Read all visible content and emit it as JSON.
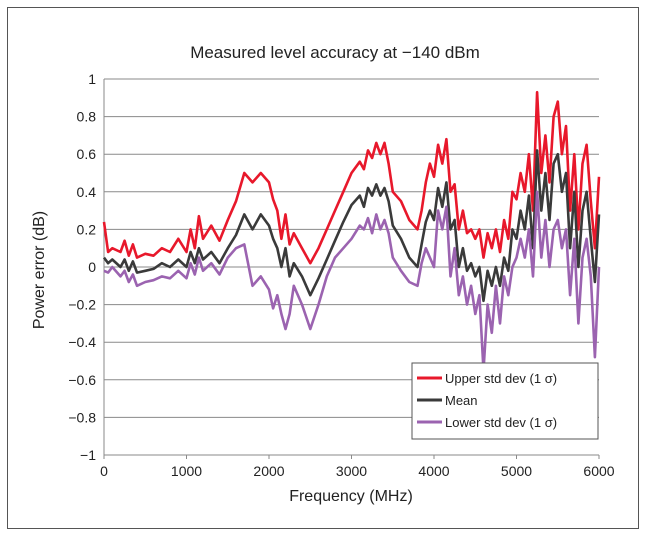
{
  "chart_data": {
    "type": "line",
    "title": "Measured level accuracy at −140 dBm",
    "xlabel": "Frequency (MHz)",
    "ylabel": "Power error (dB)",
    "xlim": [
      0,
      6000
    ],
    "ylim": [
      -1,
      1
    ],
    "x_ticks": [
      0,
      1000,
      2000,
      3000,
      4000,
      5000,
      6000
    ],
    "x_tick_labels": [
      "0",
      "1000",
      "2000",
      "3000",
      "4000",
      "5000",
      "6000"
    ],
    "y_ticks": [
      1,
      0.8,
      0.6,
      0.4,
      0.2,
      0,
      -0.2,
      -0.4,
      -0.6,
      -0.8,
      -1
    ],
    "y_tick_labels": [
      "1",
      "0.8",
      "0.6",
      "0.4",
      "0.2",
      "0",
      "−0.2",
      "−0.4",
      "−0.6",
      "−0.8",
      "−1"
    ],
    "grid": "horizontal",
    "legend_position": "bottom-right",
    "series": [
      {
        "name": "Upper std dev (1 σ)",
        "color": "#e8182b",
        "x": [
          0,
          50,
          100,
          200,
          250,
          300,
          350,
          400,
          500,
          600,
          700,
          800,
          900,
          1000,
          1050,
          1100,
          1150,
          1200,
          1300,
          1400,
          1500,
          1600,
          1700,
          1800,
          1900,
          2000,
          2050,
          2100,
          2150,
          2200,
          2250,
          2300,
          2400,
          2500,
          2600,
          2700,
          2800,
          2900,
          3000,
          3100,
          3150,
          3200,
          3250,
          3300,
          3350,
          3400,
          3450,
          3500,
          3600,
          3700,
          3800,
          3850,
          3900,
          3950,
          4000,
          4050,
          4100,
          4150,
          4200,
          4250,
          4300,
          4350,
          4400,
          4450,
          4500,
          4550,
          4600,
          4650,
          4700,
          4750,
          4800,
          4850,
          4900,
          4950,
          5000,
          5050,
          5100,
          5150,
          5200,
          5250,
          5300,
          5350,
          5400,
          5450,
          5500,
          5550,
          5600,
          5650,
          5700,
          5750,
          5800,
          5850,
          5900,
          5950,
          6000
        ],
        "values": [
          0.24,
          0.08,
          0.1,
          0.08,
          0.14,
          0.06,
          0.12,
          0.05,
          0.07,
          0.06,
          0.1,
          0.08,
          0.15,
          0.08,
          0.2,
          0.1,
          0.27,
          0.15,
          0.22,
          0.14,
          0.25,
          0.35,
          0.5,
          0.45,
          0.5,
          0.45,
          0.36,
          0.3,
          0.15,
          0.28,
          0.12,
          0.18,
          0.1,
          0.02,
          0.1,
          0.2,
          0.3,
          0.4,
          0.5,
          0.56,
          0.52,
          0.62,
          0.58,
          0.66,
          0.6,
          0.66,
          0.55,
          0.4,
          0.35,
          0.25,
          0.2,
          0.3,
          0.45,
          0.55,
          0.48,
          0.65,
          0.55,
          0.68,
          0.4,
          0.44,
          0.2,
          0.3,
          0.18,
          0.2,
          0.15,
          0.2,
          0.05,
          0.18,
          0.1,
          0.2,
          0.08,
          0.25,
          0.15,
          0.4,
          0.36,
          0.5,
          0.4,
          0.6,
          0.3,
          0.93,
          0.5,
          0.7,
          0.45,
          0.8,
          0.88,
          0.6,
          0.75,
          0.3,
          0.6,
          0.2,
          0.55,
          0.65,
          0.35,
          0.1,
          0.48
        ]
      },
      {
        "name": "Mean",
        "color": "#3a3a3a",
        "x": [
          0,
          50,
          100,
          200,
          250,
          300,
          350,
          400,
          500,
          600,
          700,
          800,
          900,
          1000,
          1050,
          1100,
          1150,
          1200,
          1300,
          1400,
          1500,
          1600,
          1700,
          1800,
          1900,
          2000,
          2050,
          2100,
          2150,
          2200,
          2250,
          2300,
          2400,
          2500,
          2600,
          2700,
          2800,
          2900,
          3000,
          3100,
          3150,
          3200,
          3250,
          3300,
          3350,
          3400,
          3450,
          3500,
          3600,
          3700,
          3800,
          3850,
          3900,
          3950,
          4000,
          4050,
          4100,
          4150,
          4200,
          4250,
          4300,
          4350,
          4400,
          4450,
          4500,
          4550,
          4600,
          4650,
          4700,
          4750,
          4800,
          4850,
          4900,
          4950,
          5000,
          5050,
          5100,
          5150,
          5200,
          5250,
          5300,
          5350,
          5400,
          5450,
          5500,
          5550,
          5600,
          5650,
          5700,
          5750,
          5800,
          5850,
          5900,
          5950,
          6000
        ],
        "values": [
          0.05,
          0.02,
          0.04,
          0.0,
          0.04,
          -0.02,
          0.03,
          -0.03,
          -0.02,
          -0.01,
          0.02,
          0.0,
          0.04,
          0.0,
          0.08,
          0.02,
          0.1,
          0.04,
          0.08,
          0.02,
          0.1,
          0.17,
          0.28,
          0.2,
          0.28,
          0.22,
          0.15,
          0.1,
          0.0,
          0.1,
          -0.05,
          0.02,
          -0.05,
          -0.15,
          -0.06,
          0.04,
          0.14,
          0.24,
          0.33,
          0.38,
          0.32,
          0.42,
          0.38,
          0.44,
          0.38,
          0.42,
          0.35,
          0.22,
          0.15,
          0.05,
          0.0,
          0.12,
          0.24,
          0.3,
          0.25,
          0.42,
          0.32,
          0.45,
          0.2,
          0.25,
          0.0,
          0.1,
          -0.02,
          0.02,
          -0.05,
          0.0,
          -0.18,
          -0.02,
          -0.1,
          0.0,
          -0.1,
          0.05,
          -0.02,
          0.2,
          0.15,
          0.3,
          0.2,
          0.38,
          0.1,
          0.62,
          0.3,
          0.5,
          0.25,
          0.55,
          0.6,
          0.4,
          0.5,
          0.1,
          0.4,
          0.0,
          0.3,
          0.4,
          0.15,
          -0.08,
          0.28
        ]
      },
      {
        "name": "Lower std dev (1 σ)",
        "color": "#9b63b0",
        "x": [
          0,
          50,
          100,
          200,
          250,
          300,
          350,
          400,
          500,
          600,
          700,
          800,
          900,
          1000,
          1050,
          1100,
          1150,
          1200,
          1300,
          1400,
          1500,
          1600,
          1700,
          1800,
          1900,
          2000,
          2050,
          2100,
          2150,
          2200,
          2250,
          2300,
          2400,
          2500,
          2600,
          2700,
          2800,
          2900,
          3000,
          3100,
          3150,
          3200,
          3250,
          3300,
          3350,
          3400,
          3450,
          3500,
          3600,
          3700,
          3800,
          3850,
          3900,
          3950,
          4000,
          4050,
          4100,
          4150,
          4200,
          4250,
          4300,
          4350,
          4400,
          4450,
          4500,
          4550,
          4600,
          4650,
          4700,
          4750,
          4800,
          4850,
          4900,
          4950,
          5000,
          5050,
          5100,
          5150,
          5200,
          5250,
          5300,
          5350,
          5400,
          5450,
          5500,
          5550,
          5600,
          5650,
          5700,
          5750,
          5800,
          5850,
          5900,
          5950,
          6000
        ],
        "values": [
          -0.02,
          -0.03,
          0.0,
          -0.05,
          -0.02,
          -0.08,
          -0.04,
          -0.1,
          -0.08,
          -0.07,
          -0.05,
          -0.06,
          -0.02,
          -0.06,
          0.02,
          -0.04,
          0.05,
          -0.02,
          0.02,
          -0.04,
          0.05,
          0.1,
          0.12,
          -0.1,
          -0.05,
          -0.12,
          -0.22,
          -0.15,
          -0.25,
          -0.33,
          -0.25,
          -0.1,
          -0.2,
          -0.33,
          -0.2,
          -0.05,
          0.05,
          0.1,
          0.15,
          0.22,
          0.2,
          0.26,
          0.18,
          0.28,
          0.2,
          0.25,
          0.18,
          0.05,
          -0.02,
          -0.08,
          -0.1,
          0.02,
          0.1,
          0.05,
          0.0,
          0.3,
          0.2,
          0.32,
          -0.05,
          0.1,
          -0.15,
          -0.05,
          -0.2,
          -0.1,
          -0.25,
          -0.15,
          -0.55,
          -0.2,
          -0.35,
          -0.1,
          -0.3,
          -0.05,
          -0.15,
          0.0,
          0.05,
          0.15,
          0.05,
          0.2,
          -0.05,
          0.4,
          0.05,
          0.25,
          0.0,
          0.2,
          0.25,
          0.1,
          0.2,
          -0.15,
          0.15,
          -0.3,
          0.05,
          0.15,
          -0.05,
          -0.48,
          0.0
        ]
      }
    ]
  }
}
